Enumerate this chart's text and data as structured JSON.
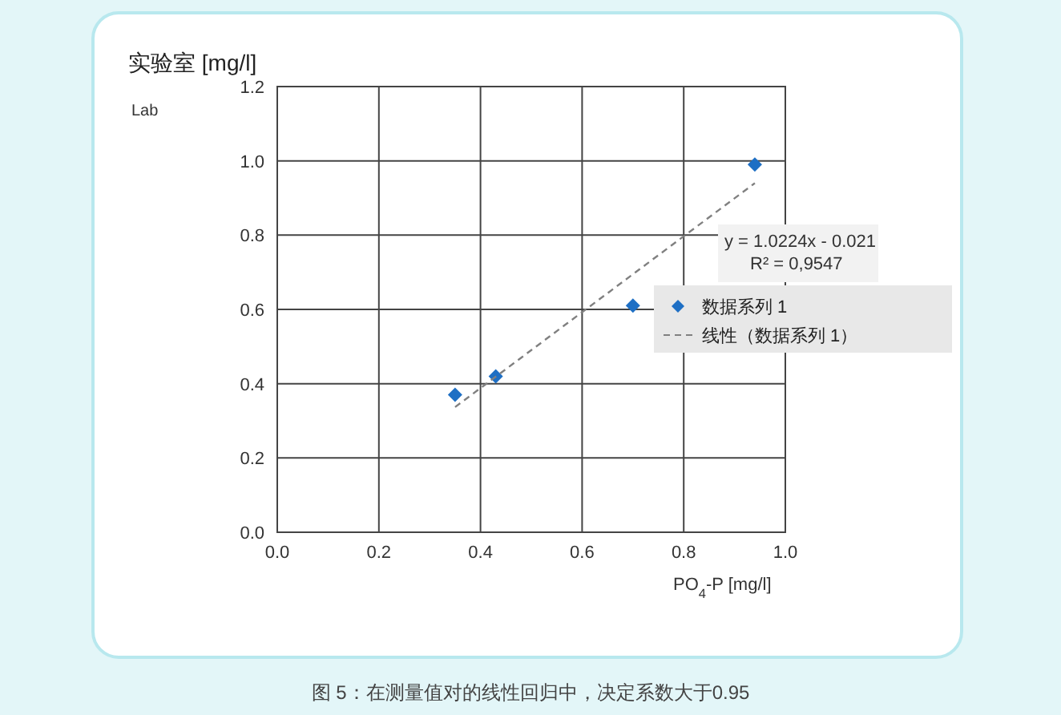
{
  "chart_data": {
    "type": "scatter",
    "ylabel": "实验室 [mg/l]",
    "xlabel": "PO$_{4}$-P [mg/l]",
    "x": [
      0.35,
      0.43,
      0.7,
      0.94
    ],
    "series": [
      {
        "name": "数据系列 1",
        "color": "#1e6fc4",
        "values": [
          0.37,
          0.42,
          0.61,
          0.99
        ],
        "marker": "diamond"
      },
      {
        "name": "线性（数据系列 1）",
        "type": "line",
        "x": [
          0.35,
          0.94
        ],
        "values": [
          0.337,
          0.94
        ],
        "color": "#808080",
        "line_style": "dashed",
        "marker": "none"
      }
    ],
    "xlim": [
      0,
      1
    ],
    "xticks": [
      {
        "value": 0,
        "label": "0.0"
      },
      0.2,
      0.4,
      0.6,
      0.8,
      {
        "value": 1,
        "label": "1.0"
      }
    ],
    "ylim": [
      0,
      1.2
    ],
    "yticks": [
      {
        "value": 0,
        "label": "0.0"
      },
      0.2,
      0.4,
      0.6,
      0.8,
      {
        "value": 1,
        "label": "1.0"
      },
      1.2
    ],
    "grid": true,
    "legend": "right",
    "annotations": [
      "y = 1.0224x - 0.021",
      "R² = 0,9547",
      "Lab",
      "图 5：在测量值对的线性回归中，决定系数大于0.95"
    ]
  }
}
